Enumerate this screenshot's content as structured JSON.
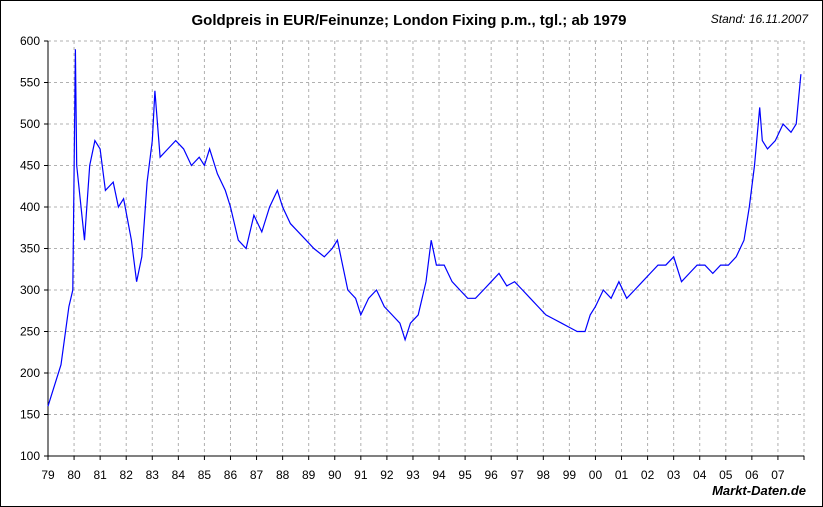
{
  "chart_data": {
    "type": "line",
    "title": "Goldpreis in EUR/Feinunze; London Fixing p.m., tgl.; ab 1979",
    "subtitle": "Stand: 16.11.2007",
    "source": "Markt-Daten.de",
    "xlabel": "",
    "ylabel": "",
    "xlim": [
      1979,
      2008
    ],
    "ylim": [
      100,
      600
    ],
    "y_ticks": [
      100,
      150,
      200,
      250,
      300,
      350,
      400,
      450,
      500,
      550,
      600
    ],
    "x_tick_labels": [
      "79",
      "80",
      "81",
      "82",
      "83",
      "84",
      "85",
      "86",
      "87",
      "88",
      "89",
      "90",
      "91",
      "92",
      "93",
      "94",
      "95",
      "96",
      "97",
      "98",
      "99",
      "00",
      "01",
      "02",
      "03",
      "04",
      "05",
      "06",
      "07"
    ],
    "grid": true,
    "line_color": "#0000ff",
    "series": [
      {
        "x": [
          1979.0,
          1979.2,
          1979.5,
          1979.8,
          1979.95,
          1980.05,
          1980.1,
          1980.2,
          1980.4,
          1980.6,
          1980.8,
          1981.0,
          1981.2,
          1981.5,
          1981.7,
          1981.9,
          1982.2,
          1982.4,
          1982.6,
          1982.8,
          1983.0,
          1983.1,
          1983.3,
          1983.6,
          1983.9,
          1984.2,
          1984.5,
          1984.8,
          1985.0,
          1985.2,
          1985.5,
          1985.8,
          1986.0,
          1986.3,
          1986.6,
          1986.9,
          1987.2,
          1987.5,
          1987.8,
          1988.0,
          1988.3,
          1988.6,
          1988.9,
          1989.2,
          1989.6,
          1989.9,
          1990.1,
          1990.3,
          1990.5,
          1990.8,
          1991.0,
          1991.3,
          1991.6,
          1991.9,
          1992.2,
          1992.5,
          1992.7,
          1992.9,
          1993.2,
          1993.5,
          1993.7,
          1993.9,
          1994.2,
          1994.5,
          1994.8,
          1995.1,
          1995.4,
          1995.7,
          1996.0,
          1996.3,
          1996.6,
          1996.9,
          1997.2,
          1997.5,
          1997.8,
          1998.1,
          1998.4,
          1998.7,
          1999.0,
          1999.3,
          1999.6,
          1999.8,
          2000.0,
          2000.3,
          2000.6,
          2000.9,
          2001.2,
          2001.5,
          2001.8,
          2002.1,
          2002.4,
          2002.7,
          2003.0,
          2003.3,
          2003.6,
          2003.9,
          2004.2,
          2004.5,
          2004.8,
          2005.1,
          2005.4,
          2005.7,
          2005.9,
          2006.1,
          2006.3,
          2006.4,
          2006.6,
          2006.9,
          2007.2,
          2007.5,
          2007.7,
          2007.85,
          2007.88
        ],
        "values": [
          160,
          180,
          210,
          280,
          300,
          590,
          450,
          420,
          360,
          450,
          480,
          470,
          420,
          430,
          400,
          410,
          360,
          310,
          340,
          430,
          480,
          540,
          460,
          470,
          480,
          470,
          450,
          460,
          450,
          470,
          440,
          420,
          400,
          360,
          350,
          390,
          370,
          400,
          420,
          400,
          380,
          370,
          360,
          350,
          340,
          350,
          360,
          330,
          300,
          290,
          270,
          290,
          300,
          280,
          270,
          260,
          240,
          260,
          270,
          310,
          360,
          330,
          330,
          310,
          300,
          290,
          290,
          300,
          310,
          320,
          305,
          310,
          300,
          290,
          280,
          270,
          265,
          260,
          255,
          250,
          250,
          270,
          280,
          300,
          290,
          310,
          290,
          300,
          310,
          320,
          330,
          330,
          340,
          310,
          320,
          330,
          330,
          320,
          330,
          330,
          340,
          360,
          400,
          450,
          520,
          480,
          470,
          480,
          500,
          490,
          500,
          550,
          560
        ]
      }
    ]
  }
}
